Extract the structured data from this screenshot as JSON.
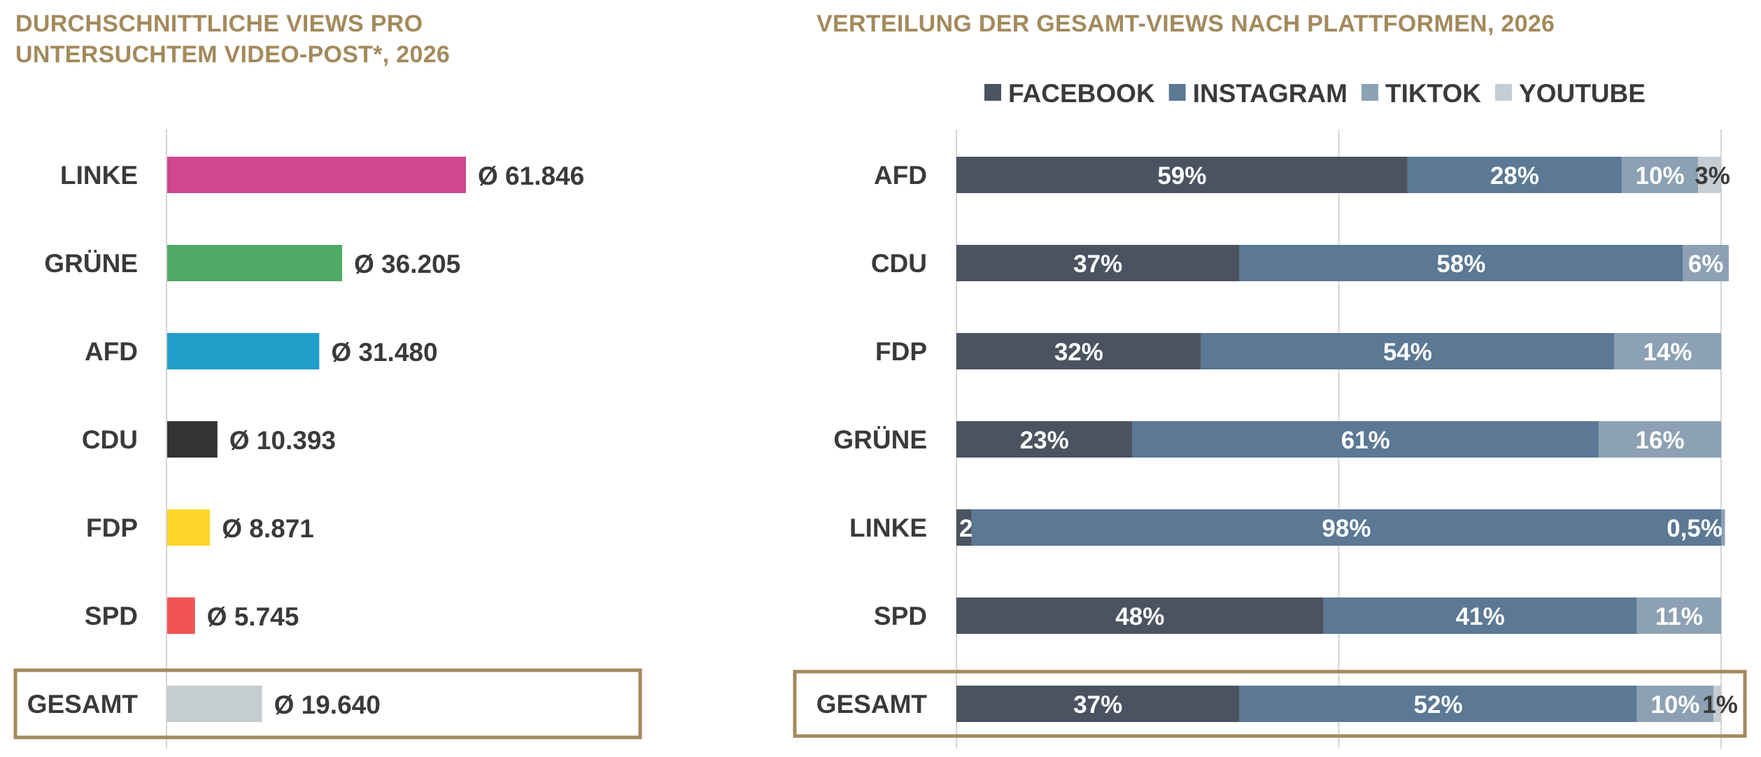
{
  "chart_data": [
    {
      "type": "bar",
      "orientation": "horizontal",
      "title": "DURCHSCHNITTLICHE VIEWS PRO\nUNTERSUCHTEM VIDEO-POST*, 2026",
      "categories": [
        "LINKE",
        "GRÜNE",
        "AFD",
        "CDU",
        "FDP",
        "SPD",
        "GESAMT"
      ],
      "values": [
        61846,
        36205,
        31480,
        10393,
        8871,
        5745,
        19640
      ],
      "value_labels": [
        "Ø 61.846",
        "Ø 36.205",
        "Ø 31.480",
        "Ø 10.393",
        "Ø 8.871",
        "Ø 5.745",
        "Ø 19.640"
      ],
      "colors": [
        "#d1468d",
        "#4faa65",
        "#229ecb",
        "#333333",
        "#fdd62a",
        "#f05353",
        "#c5cdd1"
      ],
      "highlighted_category": "GESAMT",
      "grid": false
    },
    {
      "type": "bar",
      "orientation": "horizontal",
      "stacked": "percent",
      "title": "VERTEILUNG DER GESAMT-VIEWS NACH PLATTFORMEN, 2026",
      "legend_position": "top",
      "categories": [
        "AFD",
        "CDU",
        "FDP",
        "GRÜNE",
        "LINKE",
        "SPD",
        "GESAMT"
      ],
      "series": [
        {
          "name": "FACEBOOK",
          "color": "#4b5361",
          "values": [
            59,
            37,
            32,
            23,
            2,
            48,
            37
          ],
          "labels": [
            "59%",
            "37%",
            "32%",
            "23%",
            "2%",
            "48%",
            "37%"
          ]
        },
        {
          "name": "INSTAGRAM",
          "color": "#5b7895",
          "values": [
            28,
            58,
            54,
            61,
            98,
            41,
            52
          ],
          "labels": [
            "28%",
            "58%",
            "54%",
            "61%",
            "98%",
            "41%",
            "52%"
          ]
        },
        {
          "name": "TIKTOK",
          "color": "#8ca1b3",
          "values": [
            10,
            6,
            14,
            16,
            0.5,
            11,
            10
          ],
          "labels": [
            "10%",
            "6%",
            "14%",
            "16%",
            "0,5%",
            "11%",
            "10%"
          ]
        },
        {
          "name": "YOUTUBE",
          "color": "#c5cdd3",
          "values": [
            3,
            0,
            0,
            0,
            0,
            0,
            1
          ],
          "labels": [
            "3%",
            "",
            "",
            "",
            "",
            "",
            "1%"
          ]
        }
      ],
      "xlim": [
        0,
        100
      ],
      "gridlines_at": [
        0,
        50,
        100
      ],
      "highlighted_category": "GESAMT",
      "highlight_color": "#a38a5c"
    }
  ]
}
